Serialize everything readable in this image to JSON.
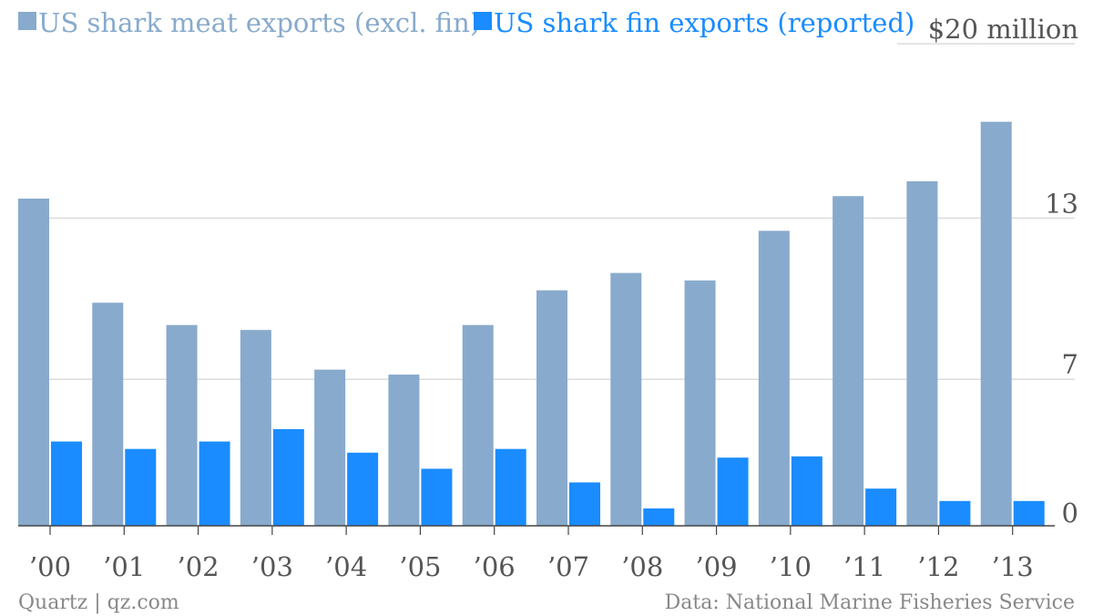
{
  "chart_data": {
    "type": "bar",
    "categories": [
      "’00",
      "’01",
      "’02",
      "’03",
      "’04",
      "’05",
      "’06",
      "’07",
      "’08",
      "’09",
      "’10",
      "’11",
      "’12",
      "’13"
    ],
    "series": [
      {
        "name": "US shark meat exports (excl. fin)",
        "color": "#88aacc",
        "values": [
          13.2,
          9.0,
          8.1,
          7.9,
          6.3,
          6.1,
          8.1,
          9.5,
          10.2,
          9.9,
          11.9,
          13.3,
          13.9,
          16.3
        ]
      },
      {
        "name": "US shark fin exports (reported)",
        "color": "#1a8cff",
        "values": [
          3.4,
          3.1,
          3.4,
          3.9,
          2.95,
          2.3,
          3.1,
          1.75,
          0.7,
          2.75,
          2.8,
          1.5,
          1.0,
          1.0
        ]
      }
    ],
    "yticks": [
      "0",
      "7",
      "13",
      "$20 million"
    ],
    "ytick_values": [
      0,
      6.5,
      13,
      20
    ],
    "ylim": [
      0,
      20
    ],
    "grid": true,
    "legend": "top-left"
  },
  "footer": {
    "source_left": "Quartz | qz.com",
    "source_right": "Data: National Marine Fisheries Service"
  }
}
